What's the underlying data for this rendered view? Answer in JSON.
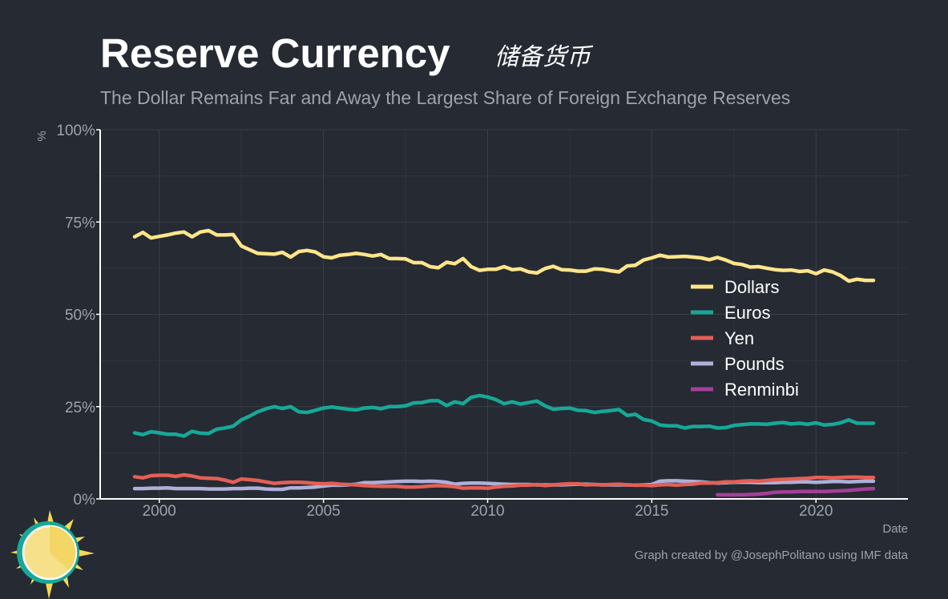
{
  "header": {
    "title": "Reserve Currency",
    "title_cn": "储备货币",
    "subtitle": "The Dollar Remains Far and Away the Largest Share of Foreign Exchange Reserves"
  },
  "footer": {
    "caption": "Graph created by @JosephPolitano using IMF data"
  },
  "colors": {
    "background": "#252a33",
    "grid": "#3a3f48",
    "axis": "#ffffff",
    "muted_text": "#9ea3aa"
  },
  "chart_data": {
    "type": "line",
    "title": "Reserve Currency",
    "subtitle": "The Dollar Remains Far and Away the Largest Share of Foreign Exchange Reserves",
    "xlabel": "Date",
    "ylabel": "%",
    "xlim": [
      1998.2,
      2022.8
    ],
    "ylim": [
      0,
      100
    ],
    "x_ticks": [
      2000,
      2005,
      2010,
      2015,
      2020
    ],
    "x_tick_labels": [
      "2000",
      "2005",
      "2010",
      "2015",
      "2020"
    ],
    "y_ticks": [
      0,
      25,
      50,
      75,
      100
    ],
    "y_tick_labels": [
      "0%",
      "25%",
      "50%",
      "75%",
      "100%"
    ],
    "grid": true,
    "legend_position": "right",
    "series": [
      {
        "name": "Dollars",
        "color": "#fde58a",
        "x": [
          1999.25,
          1999.5,
          1999.75,
          2000.0,
          2000.25,
          2000.5,
          2000.75,
          2001.0,
          2001.25,
          2001.5,
          2001.75,
          2002.0,
          2002.25,
          2002.5,
          2002.75,
          2003.0,
          2003.25,
          2003.5,
          2003.75,
          2004.0,
          2004.25,
          2004.5,
          2004.75,
          2005.0,
          2005.25,
          2005.5,
          2005.75,
          2006.0,
          2006.25,
          2006.5,
          2006.75,
          2007.0,
          2007.25,
          2007.5,
          2007.75,
          2008.0,
          2008.25,
          2008.5,
          2008.75,
          2009.0,
          2009.25,
          2009.5,
          2009.75,
          2010.0,
          2010.25,
          2010.5,
          2010.75,
          2011.0,
          2011.25,
          2011.5,
          2011.75,
          2012.0,
          2012.25,
          2012.5,
          2012.75,
          2013.0,
          2013.25,
          2013.5,
          2013.75,
          2014.0,
          2014.25,
          2014.5,
          2014.75,
          2015.0,
          2015.25,
          2015.5,
          2015.75,
          2016.0,
          2016.25,
          2016.5,
          2016.75,
          2017.0,
          2017.25,
          2017.5,
          2017.75,
          2018.0,
          2018.25,
          2018.5,
          2018.75,
          2019.0,
          2019.25,
          2019.5,
          2019.75,
          2020.0,
          2020.25,
          2020.5,
          2020.75,
          2021.0,
          2021.25,
          2021.5,
          2021.75
        ],
        "values": [
          71.0,
          72.2,
          70.7,
          71.1,
          71.5,
          72.0,
          72.3,
          71.0,
          72.3,
          72.7,
          71.5,
          71.5,
          71.6,
          68.5,
          67.5,
          66.5,
          66.4,
          66.3,
          66.8,
          65.5,
          67.0,
          67.3,
          66.9,
          65.6,
          65.3,
          66.0,
          66.2,
          66.5,
          66.2,
          65.8,
          66.2,
          65.1,
          65.1,
          65.0,
          64.0,
          64.0,
          62.9,
          62.6,
          64.1,
          63.7,
          65.1,
          62.9,
          61.9,
          62.2,
          62.2,
          62.9,
          62.1,
          62.3,
          61.5,
          61.2,
          62.4,
          63.0,
          62.1,
          62.0,
          61.7,
          61.7,
          62.3,
          62.2,
          61.8,
          61.5,
          63.1,
          63.3,
          64.7,
          65.3,
          66.0,
          65.5,
          65.6,
          65.7,
          65.5,
          65.3,
          64.8,
          65.4,
          64.7,
          63.8,
          63.5,
          62.8,
          62.9,
          62.5,
          62.1,
          61.9,
          62.0,
          61.6,
          61.8,
          61.0,
          62.0,
          61.5,
          60.5,
          59.0,
          59.5,
          59.2,
          59.2
        ]
      },
      {
        "name": "Euros",
        "color": "#17a897",
        "x": [
          1999.25,
          1999.5,
          1999.75,
          2000.0,
          2000.25,
          2000.5,
          2000.75,
          2001.0,
          2001.25,
          2001.5,
          2001.75,
          2002.0,
          2002.25,
          2002.5,
          2002.75,
          2003.0,
          2003.25,
          2003.5,
          2003.75,
          2004.0,
          2004.25,
          2004.5,
          2004.75,
          2005.0,
          2005.25,
          2005.5,
          2005.75,
          2006.0,
          2006.25,
          2006.5,
          2006.75,
          2007.0,
          2007.25,
          2007.5,
          2007.75,
          2008.0,
          2008.25,
          2008.5,
          2008.75,
          2009.0,
          2009.25,
          2009.5,
          2009.75,
          2010.0,
          2010.25,
          2010.5,
          2010.75,
          2011.0,
          2011.25,
          2011.5,
          2011.75,
          2012.0,
          2012.25,
          2012.5,
          2012.75,
          2013.0,
          2013.25,
          2013.5,
          2013.75,
          2014.0,
          2014.25,
          2014.5,
          2014.75,
          2015.0,
          2015.25,
          2015.5,
          2015.75,
          2016.0,
          2016.25,
          2016.5,
          2016.75,
          2017.0,
          2017.25,
          2017.5,
          2017.75,
          2018.0,
          2018.25,
          2018.5,
          2018.75,
          2019.0,
          2019.25,
          2019.5,
          2019.75,
          2020.0,
          2020.25,
          2020.5,
          2020.75,
          2021.0,
          2021.25,
          2021.5,
          2021.75
        ],
        "values": [
          17.9,
          17.4,
          18.2,
          17.9,
          17.5,
          17.5,
          17.0,
          18.3,
          17.8,
          17.7,
          18.9,
          19.2,
          19.7,
          21.4,
          22.4,
          23.6,
          24.4,
          25.0,
          24.5,
          25.0,
          23.6,
          23.4,
          24.0,
          24.6,
          24.9,
          24.6,
          24.3,
          24.1,
          24.6,
          24.8,
          24.4,
          25.0,
          25.0,
          25.2,
          26.0,
          26.1,
          26.6,
          26.6,
          25.3,
          26.3,
          25.8,
          27.5,
          28.0,
          27.6,
          26.9,
          25.8,
          26.3,
          25.7,
          26.1,
          26.5,
          25.2,
          24.3,
          24.5,
          24.6,
          24.0,
          23.9,
          23.4,
          23.7,
          23.9,
          24.2,
          22.6,
          22.9,
          21.5,
          21.1,
          20.0,
          19.8,
          19.8,
          19.2,
          19.6,
          19.6,
          19.7,
          19.2,
          19.3,
          19.9,
          20.1,
          20.3,
          20.3,
          20.2,
          20.5,
          20.7,
          20.3,
          20.5,
          20.2,
          20.6,
          20.0,
          20.2,
          20.6,
          21.4,
          20.5,
          20.5,
          20.5
        ]
      },
      {
        "name": "Yen",
        "color": "#e45f55",
        "x": [
          1999.25,
          1999.5,
          1999.75,
          2000.0,
          2000.25,
          2000.5,
          2000.75,
          2001.0,
          2001.25,
          2001.5,
          2001.75,
          2002.0,
          2002.25,
          2002.5,
          2002.75,
          2003.0,
          2003.25,
          2003.5,
          2003.75,
          2004.0,
          2004.25,
          2004.5,
          2004.75,
          2005.0,
          2005.25,
          2005.5,
          2005.75,
          2006.0,
          2006.25,
          2006.5,
          2006.75,
          2007.0,
          2007.25,
          2007.5,
          2007.75,
          2008.0,
          2008.25,
          2008.5,
          2008.75,
          2009.0,
          2009.25,
          2009.5,
          2009.75,
          2010.0,
          2010.25,
          2010.5,
          2010.75,
          2011.0,
          2011.25,
          2011.5,
          2011.75,
          2012.0,
          2012.25,
          2012.5,
          2012.75,
          2013.0,
          2013.25,
          2013.5,
          2013.75,
          2014.0,
          2014.25,
          2014.5,
          2014.75,
          2015.0,
          2015.25,
          2015.5,
          2015.75,
          2016.0,
          2016.25,
          2016.5,
          2016.75,
          2017.0,
          2017.25,
          2017.5,
          2017.75,
          2018.0,
          2018.25,
          2018.5,
          2018.75,
          2019.0,
          2019.25,
          2019.5,
          2019.75,
          2020.0,
          2020.25,
          2020.5,
          2020.75,
          2021.0,
          2021.25,
          2021.5,
          2021.75
        ],
        "values": [
          6.0,
          5.7,
          6.3,
          6.4,
          6.4,
          6.1,
          6.5,
          6.2,
          5.7,
          5.6,
          5.5,
          5.1,
          4.5,
          5.4,
          5.2,
          5.0,
          4.6,
          4.2,
          4.4,
          4.5,
          4.5,
          4.4,
          4.2,
          4.1,
          4.2,
          4.0,
          3.9,
          3.8,
          3.6,
          3.5,
          3.4,
          3.4,
          3.4,
          3.2,
          3.2,
          3.3,
          3.5,
          3.6,
          3.5,
          3.3,
          2.9,
          3.0,
          3.0,
          2.9,
          3.2,
          3.4,
          3.5,
          3.7,
          3.7,
          3.9,
          3.6,
          3.8,
          4.0,
          4.1,
          4.1,
          3.8,
          3.9,
          3.8,
          3.9,
          4.0,
          3.8,
          3.7,
          3.7,
          3.6,
          3.8,
          3.9,
          3.7,
          3.9,
          4.0,
          4.3,
          4.3,
          4.4,
          4.6,
          4.6,
          4.8,
          4.9,
          4.8,
          5.0,
          5.2,
          5.3,
          5.4,
          5.5,
          5.6,
          5.8,
          5.8,
          5.7,
          5.8,
          5.9,
          5.9,
          5.8,
          5.8
        ]
      },
      {
        "name": "Pounds",
        "color": "#aeb0d8",
        "x": [
          1999.25,
          1999.5,
          1999.75,
          2000.0,
          2000.25,
          2000.5,
          2000.75,
          2001.0,
          2001.25,
          2001.5,
          2001.75,
          2002.0,
          2002.25,
          2002.5,
          2002.75,
          2003.0,
          2003.25,
          2003.5,
          2003.75,
          2004.0,
          2004.25,
          2004.5,
          2004.75,
          2005.0,
          2005.25,
          2005.5,
          2005.75,
          2006.0,
          2006.25,
          2006.5,
          2006.75,
          2007.0,
          2007.25,
          2007.5,
          2007.75,
          2008.0,
          2008.25,
          2008.5,
          2008.75,
          2009.0,
          2009.25,
          2009.5,
          2009.75,
          2010.0,
          2010.25,
          2010.5,
          2010.75,
          2011.0,
          2011.25,
          2011.5,
          2011.75,
          2012.0,
          2012.25,
          2012.5,
          2012.75,
          2013.0,
          2013.25,
          2013.5,
          2013.75,
          2014.0,
          2014.25,
          2014.5,
          2014.75,
          2015.0,
          2015.25,
          2015.5,
          2015.75,
          2016.0,
          2016.25,
          2016.5,
          2016.75,
          2017.0,
          2017.25,
          2017.5,
          2017.75,
          2018.0,
          2018.25,
          2018.5,
          2018.75,
          2019.0,
          2019.25,
          2019.5,
          2019.75,
          2020.0,
          2020.25,
          2020.5,
          2020.75,
          2021.0,
          2021.25,
          2021.5,
          2021.75
        ],
        "values": [
          2.8,
          2.8,
          2.9,
          2.9,
          3.0,
          2.8,
          2.8,
          2.8,
          2.8,
          2.7,
          2.7,
          2.7,
          2.8,
          2.8,
          2.9,
          2.9,
          2.7,
          2.6,
          2.6,
          3.0,
          3.0,
          3.1,
          3.2,
          3.5,
          3.7,
          3.7,
          3.8,
          4.0,
          4.4,
          4.4,
          4.5,
          4.6,
          4.7,
          4.8,
          4.8,
          4.7,
          4.8,
          4.7,
          4.5,
          4.0,
          4.2,
          4.3,
          4.3,
          4.2,
          4.1,
          4.0,
          3.9,
          3.9,
          3.9,
          3.8,
          3.8,
          3.8,
          3.8,
          3.9,
          4.0,
          4.0,
          3.9,
          3.8,
          3.8,
          3.8,
          3.8,
          3.7,
          3.8,
          3.9,
          4.8,
          4.9,
          4.9,
          4.8,
          4.7,
          4.6,
          4.4,
          4.3,
          4.4,
          4.5,
          4.5,
          4.5,
          4.4,
          4.4,
          4.4,
          4.5,
          4.5,
          4.6,
          4.6,
          4.5,
          4.6,
          4.7,
          4.7,
          4.6,
          4.7,
          4.8,
          4.8
        ]
      },
      {
        "name": "Renminbi",
        "color": "#a53f98",
        "x": [
          2017.0,
          2017.25,
          2017.5,
          2017.75,
          2018.0,
          2018.25,
          2018.5,
          2018.75,
          2019.0,
          2019.25,
          2019.5,
          2019.75,
          2020.0,
          2020.25,
          2020.5,
          2020.75,
          2021.0,
          2021.25,
          2021.5,
          2021.75
        ],
        "values": [
          1.1,
          1.1,
          1.1,
          1.1,
          1.2,
          1.3,
          1.5,
          1.8,
          1.9,
          1.9,
          2.0,
          2.0,
          2.0,
          2.0,
          2.1,
          2.2,
          2.3,
          2.5,
          2.7,
          2.8
        ]
      }
    ]
  }
}
